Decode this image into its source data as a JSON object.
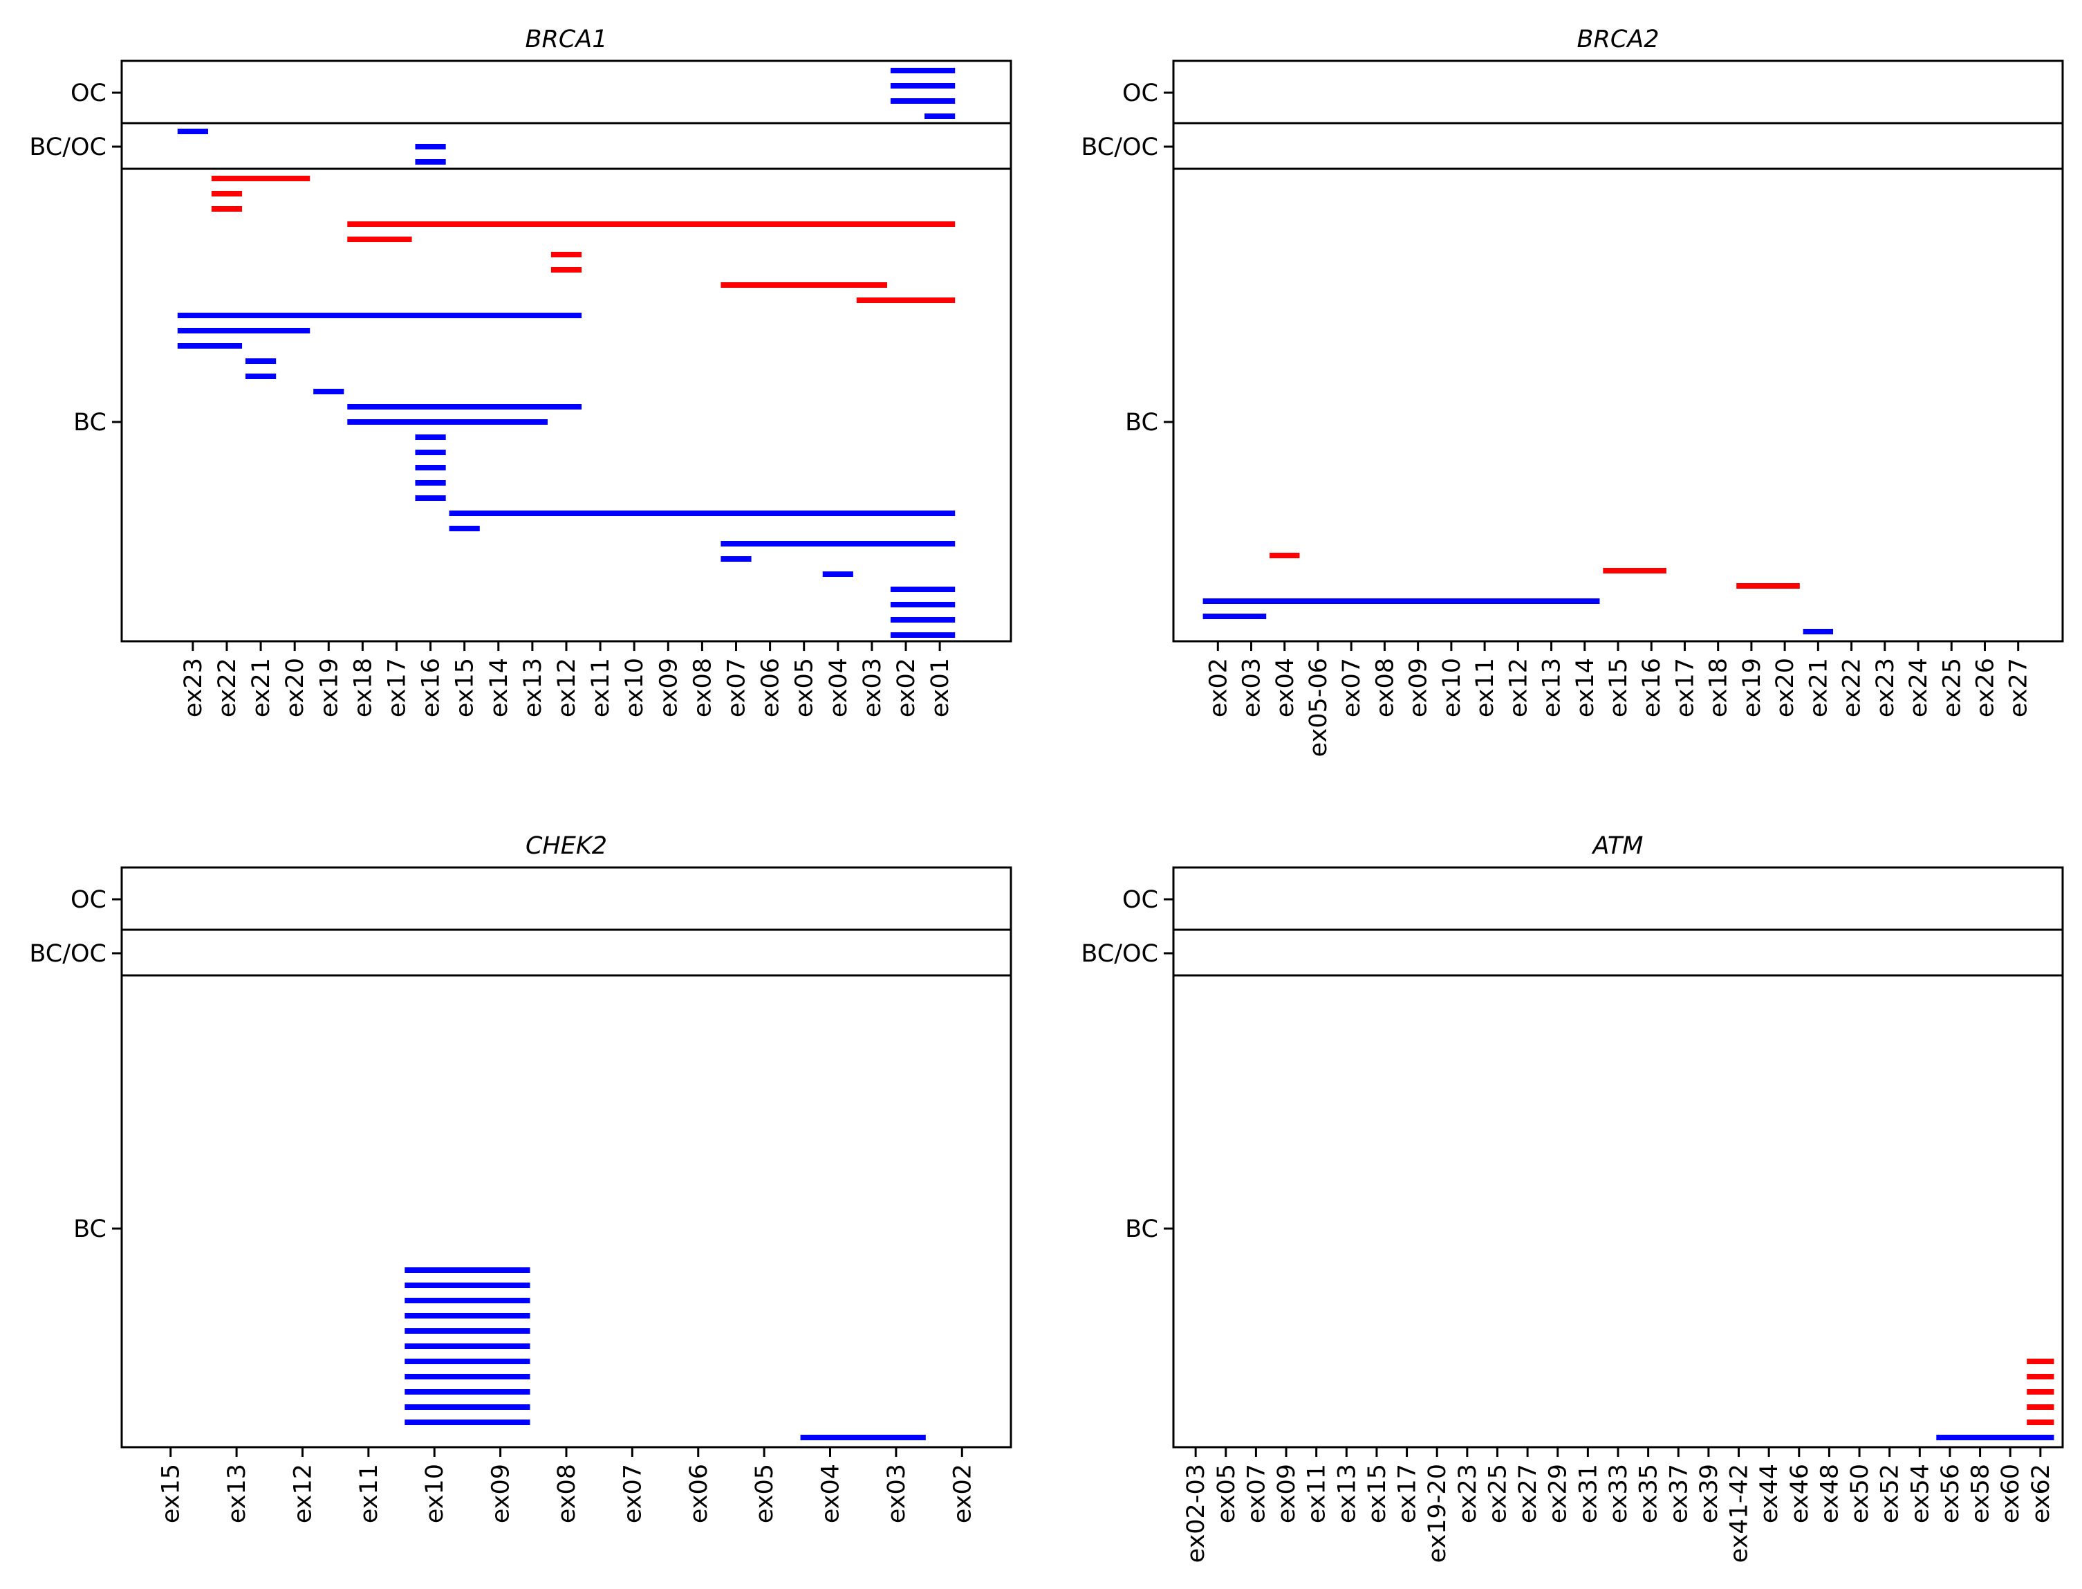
{
  "chart_data": [
    {
      "type": "segment-plot",
      "title": "BRCA1",
      "y_categories": [
        "OC",
        "BC/OC",
        "BC"
      ],
      "x_ticks": [
        "ex23",
        "ex22",
        "ex21",
        "ex20",
        "ex19",
        "ex18",
        "ex17",
        "ex16",
        "ex15",
        "ex14",
        "ex13",
        "ex12",
        "ex11",
        "ex10",
        "ex09",
        "ex08",
        "ex07",
        "ex06",
        "ex05",
        "ex04",
        "ex03",
        "ex02",
        "ex01"
      ],
      "series_colors": {
        "red": "#ff0000",
        "blue": "#0000ff"
      },
      "segments": {
        "OC": [
          {
            "from": "ex02",
            "to": "ex01",
            "color": "blue"
          },
          {
            "from": "ex02",
            "to": "ex01",
            "color": "blue"
          },
          {
            "from": "ex02",
            "to": "ex01",
            "color": "blue"
          },
          {
            "from": "ex01",
            "to": "ex01",
            "color": "blue"
          }
        ],
        "BC/OC": [
          {
            "from": "ex23",
            "to": "ex23",
            "color": "blue"
          },
          {
            "from": "ex16",
            "to": "ex16",
            "color": "blue"
          },
          {
            "from": "ex16",
            "to": "ex16",
            "color": "blue"
          }
        ],
        "BC": [
          {
            "from": "ex22",
            "to": "ex20",
            "color": "red"
          },
          {
            "from": "ex22",
            "to": "ex22",
            "color": "red"
          },
          {
            "from": "ex22",
            "to": "ex22",
            "color": "red"
          },
          {
            "from": "ex18",
            "to": "ex01",
            "color": "red"
          },
          {
            "from": "ex18",
            "to": "ex17",
            "color": "red"
          },
          {
            "from": "ex12",
            "to": "ex12",
            "color": "red"
          },
          {
            "from": "ex12",
            "to": "ex12",
            "color": "red"
          },
          {
            "from": "ex07",
            "to": "ex03",
            "color": "red"
          },
          {
            "from": "ex03",
            "to": "ex01",
            "color": "red"
          },
          {
            "from": "ex23",
            "to": "ex12",
            "color": "blue"
          },
          {
            "from": "ex23",
            "to": "ex20",
            "color": "blue"
          },
          {
            "from": "ex23",
            "to": "ex22",
            "color": "blue"
          },
          {
            "from": "ex21",
            "to": "ex21",
            "color": "blue"
          },
          {
            "from": "ex21",
            "to": "ex21",
            "color": "blue"
          },
          {
            "from": "ex19",
            "to": "ex19",
            "color": "blue"
          },
          {
            "from": "ex18",
            "to": "ex12",
            "color": "blue"
          },
          {
            "from": "ex18",
            "to": "ex13",
            "color": "blue"
          },
          {
            "from": "ex16",
            "to": "ex16",
            "color": "blue"
          },
          {
            "from": "ex16",
            "to": "ex16",
            "color": "blue"
          },
          {
            "from": "ex16",
            "to": "ex16",
            "color": "blue"
          },
          {
            "from": "ex16",
            "to": "ex16",
            "color": "blue"
          },
          {
            "from": "ex16",
            "to": "ex16",
            "color": "blue"
          },
          {
            "from": "ex15",
            "to": "ex01",
            "color": "blue"
          },
          {
            "from": "ex15",
            "to": "ex15",
            "color": "blue"
          },
          {
            "from": "ex07",
            "to": "ex01",
            "color": "blue"
          },
          {
            "from": "ex07",
            "to": "ex07",
            "color": "blue"
          },
          {
            "from": "ex04",
            "to": "ex04",
            "color": "blue"
          },
          {
            "from": "ex02",
            "to": "ex01",
            "color": "blue"
          },
          {
            "from": "ex02",
            "to": "ex01",
            "color": "blue"
          },
          {
            "from": "ex02",
            "to": "ex01",
            "color": "blue"
          },
          {
            "from": "ex02",
            "to": "ex01",
            "color": "blue"
          }
        ]
      }
    },
    {
      "type": "segment-plot",
      "title": "BRCA2",
      "y_categories": [
        "OC",
        "BC/OC",
        "BC"
      ],
      "x_ticks": [
        "ex02",
        "ex03",
        "ex04",
        "ex05-06",
        "ex07",
        "ex08",
        "ex09",
        "ex10",
        "ex11",
        "ex12",
        "ex13",
        "ex14",
        "ex15",
        "ex16",
        "ex17",
        "ex18",
        "ex19",
        "ex20",
        "ex21",
        "ex22",
        "ex23",
        "ex24",
        "ex25",
        "ex26",
        "ex27"
      ],
      "series_colors": {
        "red": "#ff0000",
        "blue": "#0000ff"
      },
      "segments": {
        "OC": [],
        "BC/OC": [],
        "BC": [
          {
            "from": "ex04",
            "to": "ex04",
            "color": "red"
          },
          {
            "from": "ex15",
            "to": "ex16",
            "color": "red"
          },
          {
            "from": "ex19",
            "to": "ex20",
            "color": "red"
          },
          {
            "from": "ex02",
            "to": "ex14",
            "color": "blue"
          },
          {
            "from": "ex02",
            "to": "ex03",
            "color": "blue"
          },
          {
            "from": "ex21",
            "to": "ex21",
            "color": "blue"
          }
        ]
      }
    },
    {
      "type": "segment-plot",
      "title": "CHEK2",
      "y_categories": [
        "OC",
        "BC/OC",
        "BC"
      ],
      "x_ticks": [
        "ex15",
        "ex13",
        "ex12",
        "ex11",
        "ex10",
        "ex09",
        "ex08",
        "ex07",
        "ex06",
        "ex05",
        "ex04",
        "ex03",
        "ex02"
      ],
      "series_colors": {
        "red": "#ff0000",
        "blue": "#0000ff"
      },
      "segments": {
        "OC": [],
        "BC/OC": [],
        "BC": [
          {
            "from": "ex10",
            "to": "ex09",
            "color": "blue"
          },
          {
            "from": "ex10",
            "to": "ex09",
            "color": "blue"
          },
          {
            "from": "ex10",
            "to": "ex09",
            "color": "blue"
          },
          {
            "from": "ex10",
            "to": "ex09",
            "color": "blue"
          },
          {
            "from": "ex10",
            "to": "ex09",
            "color": "blue"
          },
          {
            "from": "ex10",
            "to": "ex09",
            "color": "blue"
          },
          {
            "from": "ex10",
            "to": "ex09",
            "color": "blue"
          },
          {
            "from": "ex10",
            "to": "ex09",
            "color": "blue"
          },
          {
            "from": "ex10",
            "to": "ex09",
            "color": "blue"
          },
          {
            "from": "ex10",
            "to": "ex09",
            "color": "blue"
          },
          {
            "from": "ex10",
            "to": "ex09",
            "color": "blue"
          },
          {
            "from": "ex04",
            "to": "ex03",
            "color": "blue"
          }
        ]
      }
    },
    {
      "type": "segment-plot",
      "title": "ATM",
      "y_categories": [
        "OC",
        "BC/OC",
        "BC"
      ],
      "x_ticks": [
        "ex02-03",
        "ex05",
        "ex07",
        "ex09",
        "ex11",
        "ex13",
        "ex15",
        "ex17",
        "ex19-20",
        "ex23",
        "ex25",
        "ex27",
        "ex29",
        "ex31",
        "ex33",
        "ex35",
        "ex37",
        "ex39",
        "ex41-42",
        "ex44",
        "ex46",
        "ex48",
        "ex50",
        "ex52",
        "ex54",
        "ex56",
        "ex58",
        "ex60",
        "ex62"
      ],
      "series_colors": {
        "red": "#ff0000",
        "blue": "#0000ff"
      },
      "segments": {
        "OC": [],
        "BC/OC": [],
        "BC": [
          {
            "from": "ex62",
            "to": "ex62",
            "color": "red"
          },
          {
            "from": "ex62",
            "to": "ex62",
            "color": "red"
          },
          {
            "from": "ex62",
            "to": "ex62",
            "color": "red"
          },
          {
            "from": "ex62",
            "to": "ex62",
            "color": "red"
          },
          {
            "from": "ex62",
            "to": "ex62",
            "color": "red"
          },
          {
            "from": "ex56",
            "to": "ex62",
            "color": "blue"
          }
        ]
      }
    }
  ]
}
